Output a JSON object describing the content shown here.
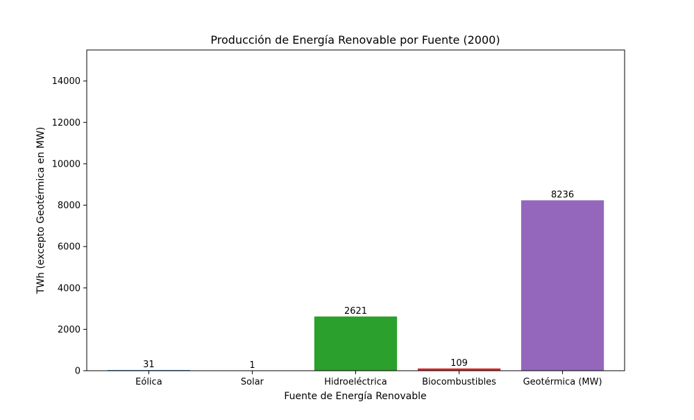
{
  "chart_data": {
    "type": "bar",
    "title": "Producción de Energía Renovable por Fuente (2000)",
    "xlabel": "Fuente de Energía Renovable",
    "ylabel": "TWh (excepto Geotérmica en MW)",
    "categories": [
      "Eólica",
      "Solar",
      "Hidroeléctrica",
      "Biocombustibles",
      "Geotérmica (MW)"
    ],
    "values": [
      31,
      1,
      2621,
      109,
      8236
    ],
    "data_labels": [
      "31",
      "1",
      "2621",
      "109",
      "8236"
    ],
    "colors": [
      "#1f77b4",
      "#ff7f0e",
      "#2ca02c",
      "#d62728",
      "#9467bd"
    ],
    "ylim": [
      0,
      15500
    ],
    "yticks": [
      0,
      2000,
      4000,
      6000,
      8000,
      10000,
      12000,
      14000
    ],
    "grid": false,
    "legend": "none"
  }
}
